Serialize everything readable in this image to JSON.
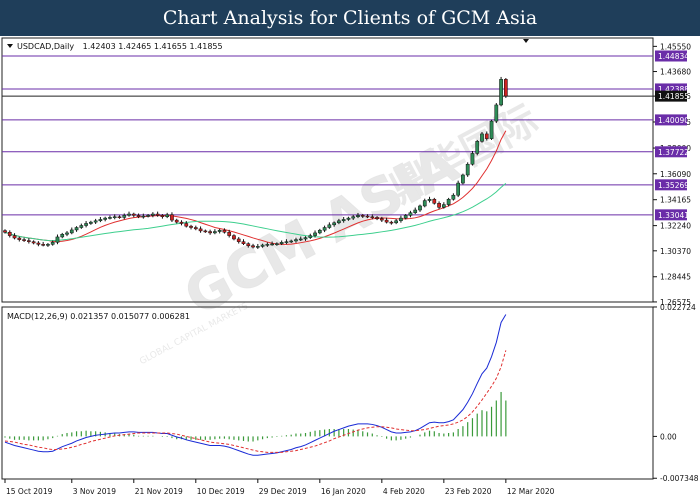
{
  "header": {
    "title": "Chart Analysis for Clients of GCM Asia"
  },
  "watermark": {
    "brand": "GCM ASIA",
    "subtitle": "GLOBAL CAPITAL MARKETS",
    "chinese": "鼎华国际"
  },
  "colors": {
    "header_bg": "#1f3e5a",
    "bull_candle": "#2e8b57",
    "bear_candle": "#cc2222",
    "ma_fast": "#e03030",
    "ma_slow": "#3ecf8e",
    "resistance_line": "#6a2da8",
    "current_price_line": "#222222",
    "macd_line": "#1a2bd6",
    "signal_line": "#e03030",
    "histogram": "#3a9a3a"
  },
  "chart_data": [
    {
      "type": "candlestick",
      "title": "USDCAD,Daily",
      "ohlc_label": "1.42403 1.42465 1.41655 1.41855",
      "ylim": [
        1.2657,
        1.4617
      ],
      "y_ticks": [
        "1.45550",
        "1.43680",
        "1.41855",
        "1.39935",
        "1.38000",
        "1.36090",
        "1.34165",
        "1.32240",
        "1.30370",
        "1.28445",
        "1.26575"
      ],
      "date_labels": [
        "15 Oct 2019",
        "3 Nov 2019",
        "21 Nov 2019",
        "10 Dec 2019",
        "29 Dec 2019",
        "16 Jan 2020",
        "4 Feb 2020",
        "23 Feb 2020",
        "12 Mar 2020"
      ],
      "date_label_index": [
        0,
        14,
        27,
        40,
        53,
        66,
        79,
        92,
        105
      ],
      "close": [
        1.3175,
        1.315,
        1.3132,
        1.312,
        1.3113,
        1.3105,
        1.3095,
        1.3085,
        1.308,
        1.3085,
        1.31,
        1.314,
        1.316,
        1.317,
        1.3192,
        1.321,
        1.3225,
        1.324,
        1.325,
        1.326,
        1.327,
        1.328,
        1.3285,
        1.329,
        1.3285,
        1.33,
        1.331,
        1.33,
        1.329,
        1.3295,
        1.33,
        1.331,
        1.33,
        1.329,
        1.3305,
        1.3265,
        1.325,
        1.324,
        1.322,
        1.321,
        1.32,
        1.3185,
        1.318,
        1.317,
        1.318,
        1.319,
        1.3175,
        1.315,
        1.3125,
        1.3105,
        1.309,
        1.3075,
        1.3065,
        1.307,
        1.308,
        1.3085,
        1.3088,
        1.309,
        1.31,
        1.3105,
        1.311,
        1.312,
        1.3125,
        1.3135,
        1.315,
        1.317,
        1.319,
        1.321,
        1.323,
        1.3245,
        1.326,
        1.327,
        1.328,
        1.329,
        1.33,
        1.3295,
        1.329,
        1.3285,
        1.3275,
        1.3265,
        1.325,
        1.3245,
        1.326,
        1.328,
        1.33,
        1.332,
        1.334,
        1.337,
        1.341,
        1.342,
        1.339,
        1.336,
        1.338,
        1.342,
        1.345,
        1.354,
        1.36,
        1.368,
        1.376,
        1.385,
        1.3905,
        1.387,
        1.4,
        1.412,
        1.431,
        1.4186
      ],
      "resistance_levels": [
        "1.44834",
        "1.42388",
        "1.40090",
        "1.37722",
        "1.35269",
        "1.33041"
      ],
      "current_price": "1.41855"
    },
    {
      "type": "macd",
      "title": "MACD(12,26,9) 0.021357 0.015077 0.006281",
      "ylim": [
        -0.00748,
        0.02272
      ],
      "y_ticks": [
        "0.022724",
        "0.00",
        "-0.007348"
      ],
      "macd": [
        -0.001,
        -0.0013,
        -0.0016,
        -0.0018,
        -0.002,
        -0.0022,
        -0.0024,
        -0.0026,
        -0.0027,
        -0.0027,
        -0.0026,
        -0.0022,
        -0.0018,
        -0.0015,
        -0.0012,
        -0.0008,
        -0.0005,
        -0.0002,
        0.0,
        0.0002,
        0.0003,
        0.0004,
        0.0005,
        0.0006,
        0.0006,
        0.0007,
        0.0008,
        0.0008,
        0.0007,
        0.0007,
        0.0007,
        0.0007,
        0.0006,
        0.0005,
        0.0005,
        0.0002,
        -0.0001,
        -0.0003,
        -0.0006,
        -0.0008,
        -0.001,
        -0.0012,
        -0.0014,
        -0.0016,
        -0.0016,
        -0.0016,
        -0.0017,
        -0.0019,
        -0.0022,
        -0.0025,
        -0.0028,
        -0.0031,
        -0.0033,
        -0.0033,
        -0.0032,
        -0.0031,
        -0.003,
        -0.0029,
        -0.0027,
        -0.0025,
        -0.0023,
        -0.002,
        -0.0018,
        -0.0015,
        -0.0011,
        -0.0007,
        -0.0003,
        0.0001,
        0.0005,
        0.0009,
        0.0012,
        0.0015,
        0.0018,
        0.002,
        0.0022,
        0.0022,
        0.0022,
        0.0021,
        0.0019,
        0.0016,
        0.0012,
        0.0008,
        0.0006,
        0.0006,
        0.0007,
        0.0008,
        0.001,
        0.0014,
        0.0019,
        0.0024,
        0.0025,
        0.0024,
        0.0024,
        0.0026,
        0.0029,
        0.0038,
        0.0047,
        0.006,
        0.0075,
        0.0093,
        0.011,
        0.012,
        0.014,
        0.0165,
        0.02,
        0.0214
      ],
      "signal": [
        -0.0008,
        -0.0009,
        -0.001,
        -0.0012,
        -0.0014,
        -0.0015,
        -0.0017,
        -0.0019,
        -0.002,
        -0.0022,
        -0.0023,
        -0.0023,
        -0.0022,
        -0.0021,
        -0.0019,
        -0.0017,
        -0.0014,
        -0.0012,
        -0.0009,
        -0.0007,
        -0.0005,
        -0.0003,
        -0.0001,
        0.0001,
        0.0002,
        0.0003,
        0.0004,
        0.0005,
        0.0006,
        0.0006,
        0.0006,
        0.0006,
        0.0006,
        0.0006,
        0.0006,
        0.0005,
        0.0004,
        0.0002,
        0.0,
        -0.0002,
        -0.0004,
        -0.0006,
        -0.0008,
        -0.001,
        -0.0011,
        -0.0012,
        -0.0013,
        -0.0014,
        -0.0016,
        -0.0018,
        -0.002,
        -0.0022,
        -0.0024,
        -0.0026,
        -0.0027,
        -0.0028,
        -0.0028,
        -0.0028,
        -0.0028,
        -0.0027,
        -0.0026,
        -0.0025,
        -0.0023,
        -0.0021,
        -0.0019,
        -0.0017,
        -0.0014,
        -0.0011,
        -0.0008,
        -0.0004,
        -0.0001,
        0.0002,
        0.0005,
        0.0008,
        0.0011,
        0.0013,
        0.0015,
        0.0016,
        0.0017,
        0.0017,
        0.0016,
        0.0015,
        0.0013,
        0.0012,
        0.0011,
        0.001,
        0.001,
        0.0011,
        0.0012,
        0.0014,
        0.0016,
        0.0018,
        0.0019,
        0.002,
        0.0022,
        0.0025,
        0.0029,
        0.0035,
        0.0043,
        0.0053,
        0.0064,
        0.0076,
        0.0088,
        0.0102,
        0.0122,
        0.0151
      ]
    }
  ]
}
